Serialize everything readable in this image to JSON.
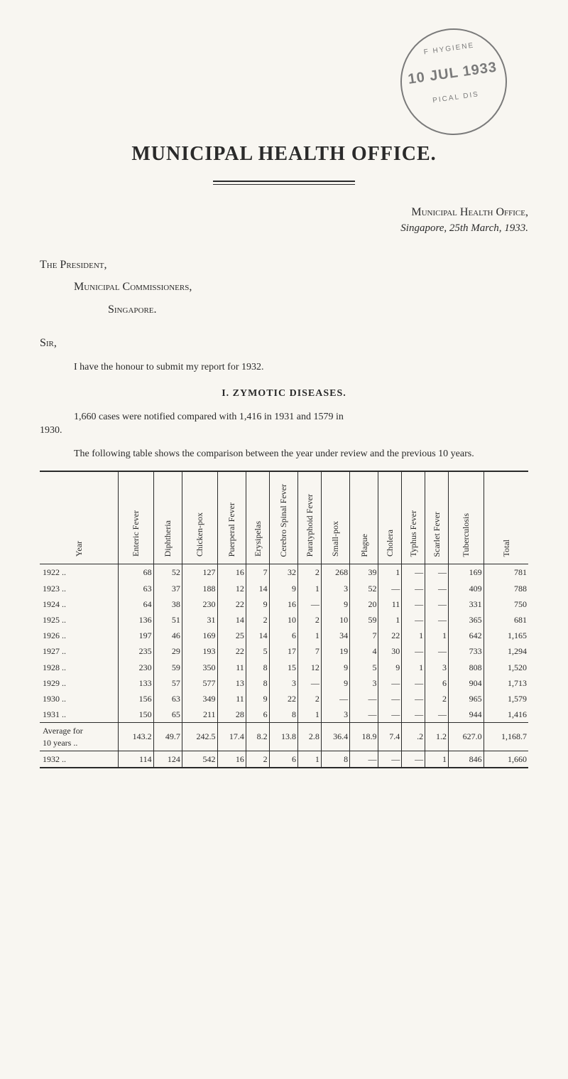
{
  "stamp": {
    "top_arc": "F HYGIENE",
    "mid": "10 JUL 1933",
    "bot_arc": "PICAL DIS"
  },
  "title": "MUNICIPAL HEALTH OFFICE.",
  "letterhead": {
    "office": "Municipal Health Office,",
    "place_date": "Singapore, 25th March, 1933."
  },
  "salutation": {
    "president": "The President,",
    "commissioners": "Municipal Commissioners,",
    "city": "Singapore."
  },
  "sir": "Sir,",
  "intro": "I have the honour to submit my report for 1932.",
  "section_heading": "I.  ZYMOTIC DISEASES.",
  "para1_year": "1930.",
  "para1": "1,660 cases were notified compared with 1,416 in 1931 and 1579 in",
  "para2": "The following table shows the comparison between the year under review and the previous 10 years.",
  "table": {
    "columns": [
      "Year",
      "Enteric Fever",
      "Diphtheria",
      "Chicken-pox",
      "Puerperal Fever",
      "Erysipelas",
      "Cerebro Spinal Fever",
      "Paratyphoid Fever",
      "Small-pox",
      "Plague",
      "Cholera",
      "Typhus Fever",
      "Scarlet Fever",
      "Tuberculosis",
      "Total"
    ],
    "rows": [
      {
        "year": "1922",
        "cells": [
          "68",
          "52",
          "127",
          "16",
          "7",
          "32",
          "2",
          "268",
          "39",
          "1",
          "—",
          "—",
          "169",
          "781"
        ]
      },
      {
        "year": "1923",
        "cells": [
          "63",
          "37",
          "188",
          "12",
          "14",
          "9",
          "1",
          "3",
          "52",
          "—",
          "—",
          "—",
          "409",
          "788"
        ]
      },
      {
        "year": "1924",
        "cells": [
          "64",
          "38",
          "230",
          "22",
          "9",
          "16",
          "—",
          "9",
          "20",
          "11",
          "—",
          "—",
          "331",
          "750"
        ]
      },
      {
        "year": "1925",
        "cells": [
          "136",
          "51",
          "31",
          "14",
          "2",
          "10",
          "2",
          "10",
          "59",
          "1",
          "—",
          "—",
          "365",
          "681"
        ]
      },
      {
        "year": "1926",
        "cells": [
          "197",
          "46",
          "169",
          "25",
          "14",
          "6",
          "1",
          "34",
          "7",
          "22",
          "1",
          "1",
          "642",
          "1,165"
        ]
      },
      {
        "year": "1927",
        "cells": [
          "235",
          "29",
          "193",
          "22",
          "5",
          "17",
          "7",
          "19",
          "4",
          "30",
          "—",
          "—",
          "733",
          "1,294"
        ]
      },
      {
        "year": "1928",
        "cells": [
          "230",
          "59",
          "350",
          "11",
          "8",
          "15",
          "12",
          "9",
          "5",
          "9",
          "1",
          "3",
          "808",
          "1,520"
        ]
      },
      {
        "year": "1929",
        "cells": [
          "133",
          "57",
          "577",
          "13",
          "8",
          "3",
          "—",
          "9",
          "3",
          "—",
          "—",
          "6",
          "904",
          "1,713"
        ]
      },
      {
        "year": "1930",
        "cells": [
          "156",
          "63",
          "349",
          "11",
          "9",
          "22",
          "2",
          "—",
          "—",
          "—",
          "—",
          "2",
          "965",
          "1,579"
        ]
      },
      {
        "year": "1931",
        "cells": [
          "150",
          "65",
          "211",
          "28",
          "6",
          "8",
          "1",
          "3",
          "—",
          "—",
          "—",
          "—",
          "944",
          "1,416"
        ]
      }
    ],
    "avg_label": "Average for 10 years",
    "avg": [
      "143.2",
      "49.7",
      "242.5",
      "17.4",
      "8.2",
      "13.8",
      "2.8",
      "36.4",
      "18.9",
      "7.4",
      ".2",
      "1.2",
      "627.0",
      "1,168.7"
    ],
    "year_1932_label": "1932",
    "year_1932": [
      "114",
      "124",
      "542",
      "16",
      "2",
      "6",
      "1",
      "8",
      "—",
      "—",
      "—",
      "1",
      "846",
      "1,660"
    ]
  }
}
